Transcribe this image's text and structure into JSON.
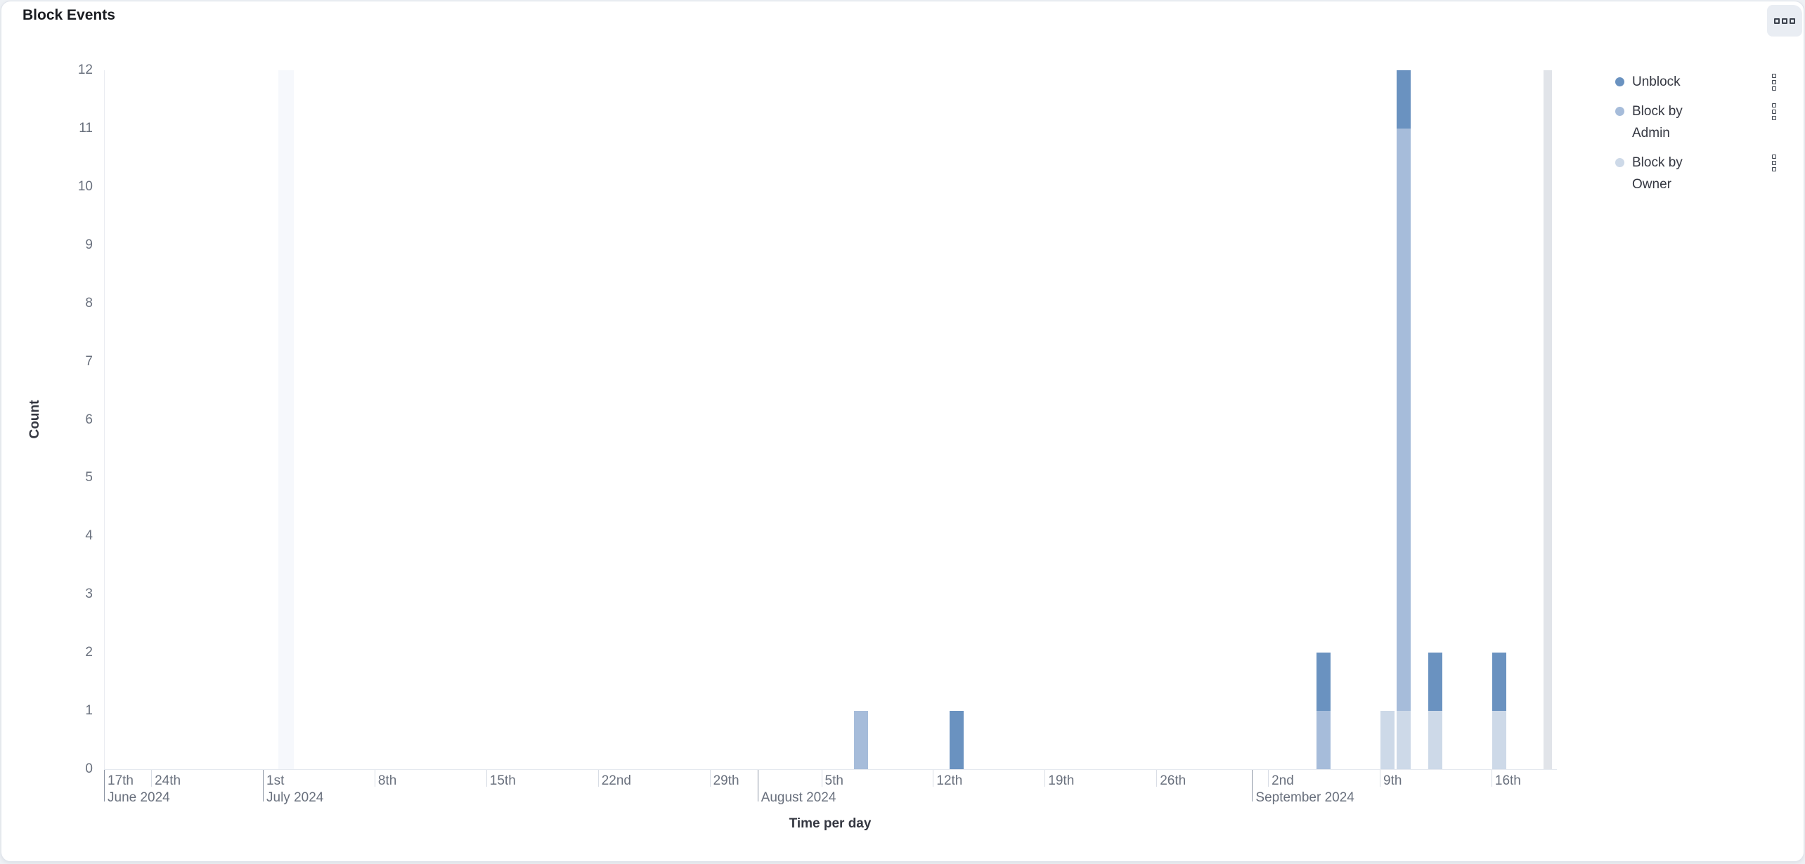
{
  "panel": {
    "title": "Block Events"
  },
  "legend": {
    "position": "right",
    "items": [
      {
        "label": "Unblock",
        "color": "#6A92C0"
      },
      {
        "label": "Block by Admin",
        "color": "#A6BCDA"
      },
      {
        "label": "Block by Owner",
        "color": "#CDD9E8"
      }
    ]
  },
  "chart_data": {
    "type": "bar",
    "stacked": true,
    "title": "Block Events",
    "xlabel": "Time per day",
    "ylabel": "Count",
    "ylim": [
      0,
      12
    ],
    "y_ticks": [
      0,
      1,
      2,
      3,
      4,
      5,
      6,
      7,
      8,
      9,
      10,
      11,
      12
    ],
    "grid": false,
    "x_domain_days": [
      "2024-06-21",
      "2024-09-21"
    ],
    "stack_order": [
      "Block by Owner",
      "Block by Admin",
      "Unblock"
    ],
    "series": [
      {
        "name": "Unblock",
        "color": "#6A92C0",
        "points": [
          {
            "date": "2024-08-13",
            "value": 1
          },
          {
            "date": "2024-09-05",
            "value": 1
          },
          {
            "date": "2024-09-10",
            "value": 1
          },
          {
            "date": "2024-09-12",
            "value": 1
          },
          {
            "date": "2024-09-16",
            "value": 1
          }
        ]
      },
      {
        "name": "Block by Admin",
        "color": "#A6BCDA",
        "points": [
          {
            "date": "2024-08-07",
            "value": 1
          },
          {
            "date": "2024-09-05",
            "value": 1
          },
          {
            "date": "2024-09-10",
            "value": 10
          }
        ]
      },
      {
        "name": "Block by Owner",
        "color": "#CDD9E8",
        "points": [
          {
            "date": "2024-09-09",
            "value": 1
          },
          {
            "date": "2024-09-10",
            "value": 1
          },
          {
            "date": "2024-09-12",
            "value": 1
          },
          {
            "date": "2024-09-16",
            "value": 1
          }
        ]
      }
    ],
    "x_ticks": [
      {
        "date": "2024-06-17",
        "label": "17th",
        "month": true,
        "month_label": "June 2024"
      },
      {
        "date": "2024-06-24",
        "label": "24th"
      },
      {
        "date": "2024-07-01",
        "label": "1st",
        "month": true,
        "month_label": "July 2024"
      },
      {
        "date": "2024-07-08",
        "label": "8th"
      },
      {
        "date": "2024-07-15",
        "label": "15th"
      },
      {
        "date": "2024-07-22",
        "label": "22nd"
      },
      {
        "date": "2024-07-29",
        "label": "29th"
      },
      {
        "date": "2024-08-01",
        "month": true,
        "month_label": "August 2024"
      },
      {
        "date": "2024-08-05",
        "label": "5th"
      },
      {
        "date": "2024-08-12",
        "label": "12th"
      },
      {
        "date": "2024-08-19",
        "label": "19th"
      },
      {
        "date": "2024-08-26",
        "label": "26th"
      },
      {
        "date": "2024-09-01",
        "month": true,
        "month_label": "September 2024"
      },
      {
        "date": "2024-09-02",
        "label": "2nd"
      },
      {
        "date": "2024-09-09",
        "label": "9th"
      },
      {
        "date": "2024-09-16",
        "label": "16th"
      }
    ],
    "highlight_bands": [
      {
        "from_day_after_jul1": 0.97,
        "to_day_after_jul1": 1.94,
        "color": "#F6F8FC"
      },
      {
        "from_day_after_jul1": 80.28,
        "to_day_after_jul1": 80.81,
        "color": "#E1E4E9"
      }
    ]
  }
}
